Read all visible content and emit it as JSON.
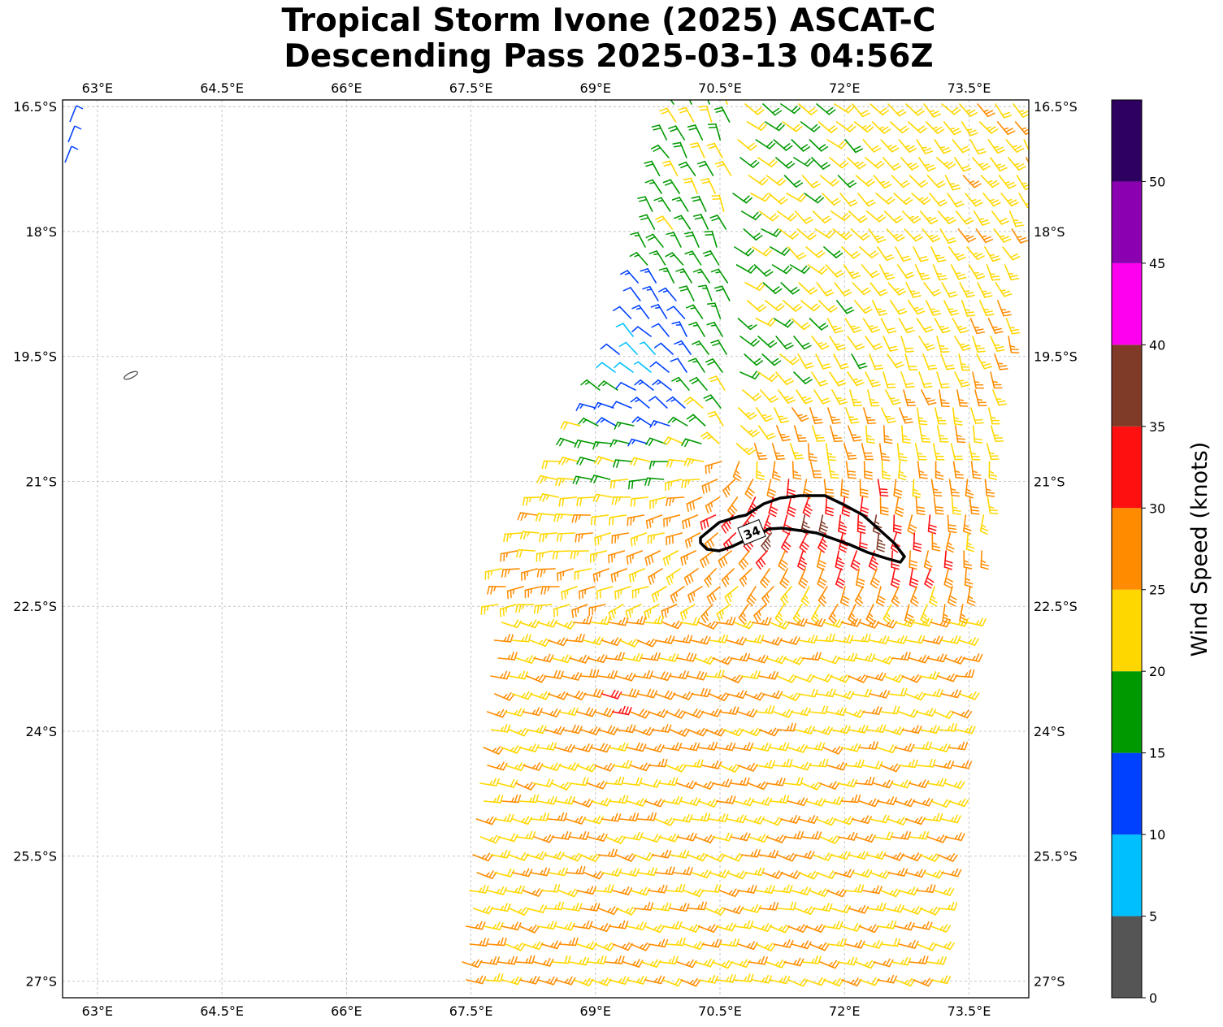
{
  "title": {
    "line1": "Tropical Storm Ivone (2025) ASCAT-C",
    "line2": "Descending Pass 2025-03-13 04:56Z"
  },
  "map": {
    "lon_range": [
      62.58,
      74.22
    ],
    "lat_range": [
      -27.2,
      -16.42
    ],
    "lon_ticks": [
      63,
      64.5,
      66,
      67.5,
      69,
      70.5,
      72,
      73.5
    ],
    "lon_tick_labels": [
      "63°E",
      "64.5°E",
      "66°E",
      "67.5°E",
      "69°E",
      "70.5°E",
      "72°E",
      "73.5°E"
    ],
    "lat_ticks": [
      -16.5,
      -18,
      -19.5,
      -21,
      -22.5,
      -24,
      -25.5,
      -27
    ],
    "lat_tick_labels": [
      "16.5°S",
      "18°S",
      "19.5°S",
      "21°S",
      "22.5°S",
      "24°S",
      "25.5°S",
      "27°S"
    ],
    "gridlines": true,
    "contour_label": "34"
  },
  "colorbar": {
    "label": "Wind Speed (knots)",
    "bounds": [
      0,
      5,
      10,
      15,
      20,
      25,
      30,
      35,
      40,
      45,
      50,
      55
    ],
    "tick_labels": [
      "0",
      "5",
      "10",
      "15",
      "20",
      "25",
      "30",
      "35",
      "40",
      "45",
      "50"
    ],
    "colors": [
      "#555555",
      "#00bfff",
      "#0040ff",
      "#009900",
      "#ffd700",
      "#ff8c00",
      "#ff1010",
      "#7f3a28",
      "#ff00ee",
      "#8b00b0",
      "#2e0060"
    ]
  },
  "wind_field": {
    "units": "knots",
    "direction_note": "wind barbs; flow from southeast in south, cyclonic around storm near 21.5°S 71°E"
  }
}
